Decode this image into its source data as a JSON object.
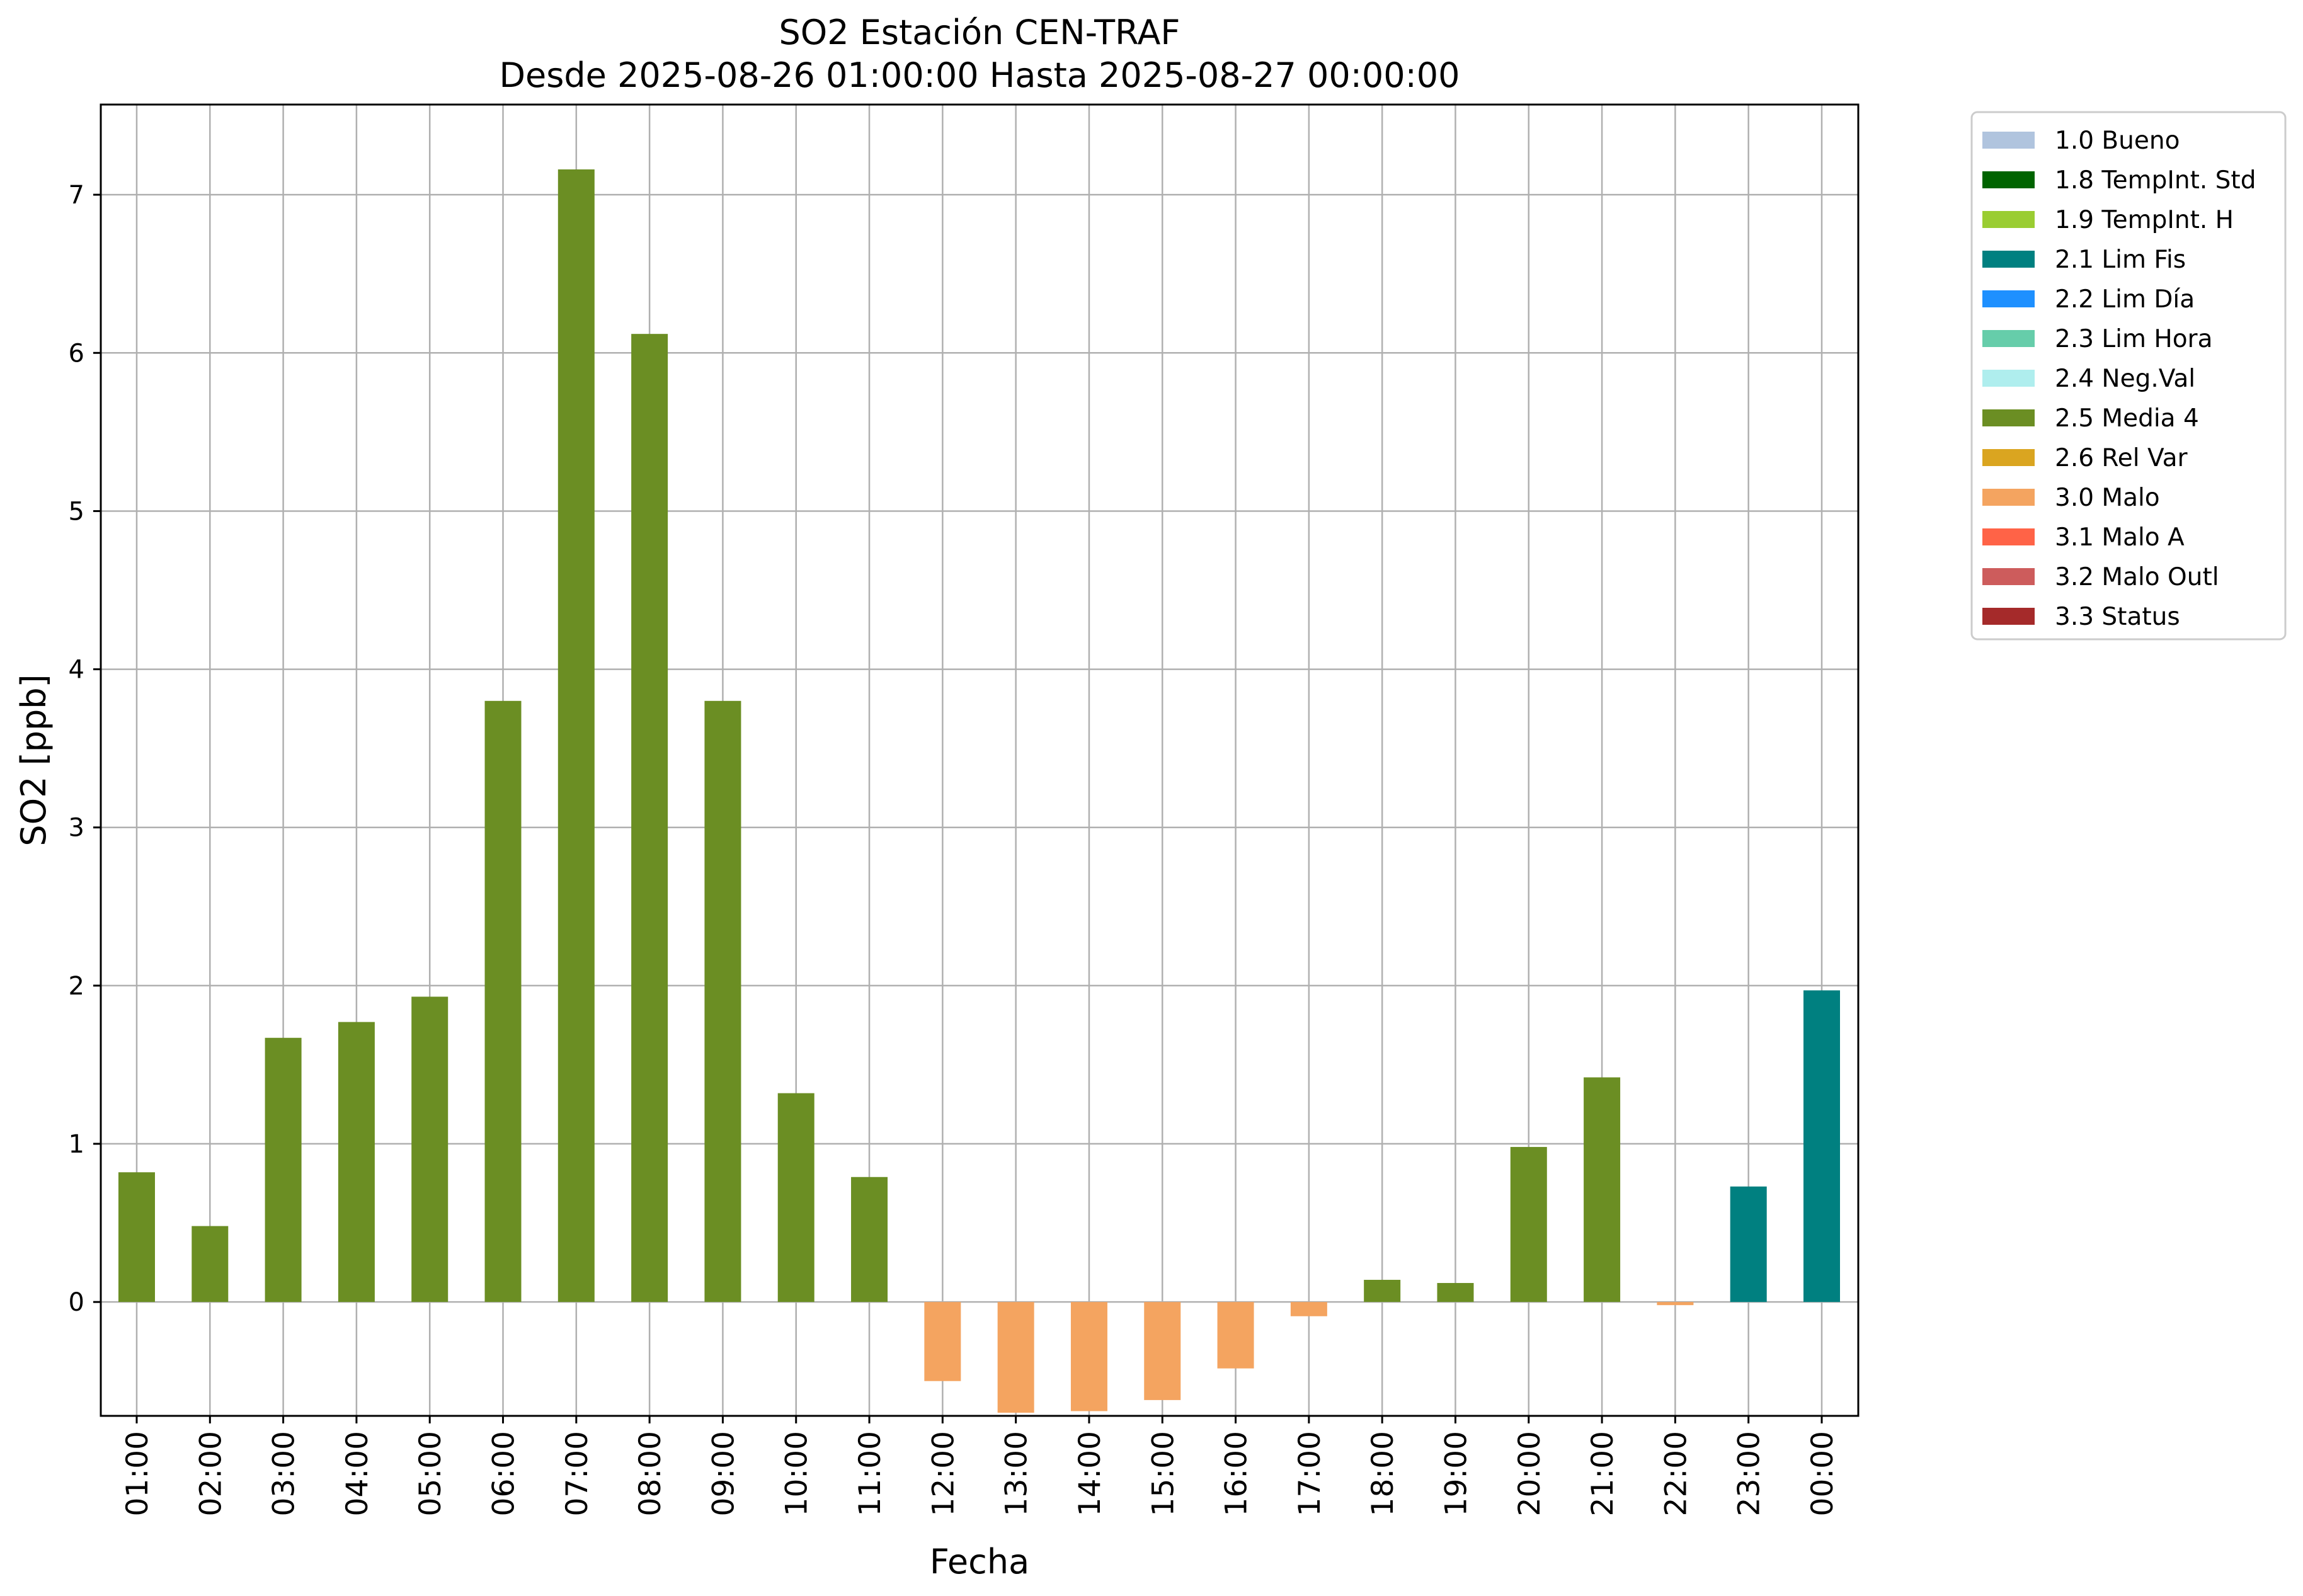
{
  "chart_data": {
    "type": "bar",
    "title": "SO2 Estación CEN-TRAF",
    "subtitle": "Desde 2025-08-26 01:00:00 Hasta 2025-08-27 00:00:00",
    "xlabel": "Fecha",
    "ylabel": "SO2 [ppb]",
    "ylim": [
      -0.72,
      7.57
    ],
    "yticks": [
      0,
      1,
      2,
      3,
      4,
      5,
      6,
      7
    ],
    "grid": true,
    "legend_position": "outside-top-right",
    "categories": [
      "01:00",
      "02:00",
      "03:00",
      "04:00",
      "05:00",
      "06:00",
      "07:00",
      "08:00",
      "09:00",
      "10:00",
      "11:00",
      "12:00",
      "13:00",
      "14:00",
      "15:00",
      "16:00",
      "17:00",
      "18:00",
      "19:00",
      "20:00",
      "21:00",
      "22:00",
      "23:00",
      "00:00"
    ],
    "values": [
      0.82,
      0.48,
      1.67,
      1.77,
      1.93,
      3.8,
      7.16,
      6.12,
      3.8,
      1.32,
      0.79,
      -0.5,
      -0.7,
      -0.69,
      -0.62,
      -0.42,
      -0.09,
      0.14,
      0.12,
      0.98,
      1.42,
      -0.02,
      0.73,
      1.97
    ],
    "flags": [
      "2.5 Media 4",
      "2.5 Media 4",
      "2.5 Media 4",
      "2.5 Media 4",
      "2.5 Media 4",
      "2.5 Media 4",
      "2.5 Media 4",
      "2.5 Media 4",
      "2.5 Media 4",
      "2.5 Media 4",
      "2.5 Media 4",
      "3.0 Malo",
      "3.0 Malo",
      "3.0 Malo",
      "3.0 Malo",
      "3.0 Malo",
      "3.0 Malo",
      "2.5 Media 4",
      "2.5 Media 4",
      "2.5 Media 4",
      "2.5 Media 4",
      "3.0 Malo",
      "2.1 Lim Fis",
      "2.1 Lim Fis"
    ],
    "legend": [
      {
        "label": "1.0 Bueno",
        "color": "#b0c4de"
      },
      {
        "label": "1.8 TempInt. Std",
        "color": "#006400"
      },
      {
        "label": "1.9 TempInt. H",
        "color": "#9acd32"
      },
      {
        "label": "2.1 Lim Fis",
        "color": "#008080"
      },
      {
        "label": "2.2 Lim Día",
        "color": "#1e90ff"
      },
      {
        "label": "2.3 Lim Hora",
        "color": "#66cdaa"
      },
      {
        "label": "2.4 Neg.Val",
        "color": "#afeeee"
      },
      {
        "label": "2.5 Media 4",
        "color": "#6b8e23"
      },
      {
        "label": "2.6 Rel Var",
        "color": "#daa520"
      },
      {
        "label": "3.0 Malo",
        "color": "#f4a460"
      },
      {
        "label": "3.1 Malo A",
        "color": "#ff6347"
      },
      {
        "label": "3.2 Malo Outl",
        "color": "#cd5c5c"
      },
      {
        "label": "3.3 Status",
        "color": "#a52a2a"
      }
    ]
  }
}
